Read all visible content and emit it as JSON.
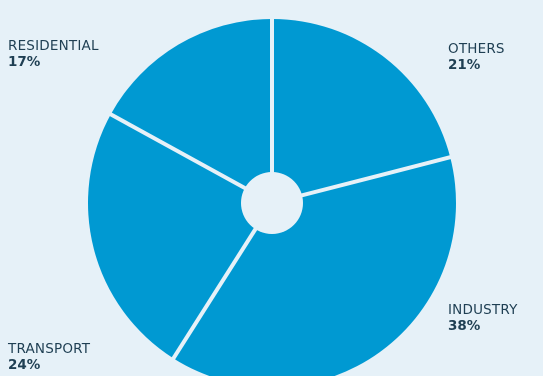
{
  "chart_data": {
    "type": "pie",
    "categories": [
      "OTHERS",
      "INDUSTRY",
      "TRANSPORT",
      "RESIDENTIAL"
    ],
    "values": [
      21,
      38,
      24,
      17
    ],
    "labels": [
      "21%",
      "38%",
      "24%",
      "17%"
    ],
    "title": "",
    "legend": "none",
    "colors": {
      "slice": "#0099d2",
      "separator": "#e6f1f8",
      "background": "#e6f1f8",
      "text": "#1f3f53"
    }
  }
}
